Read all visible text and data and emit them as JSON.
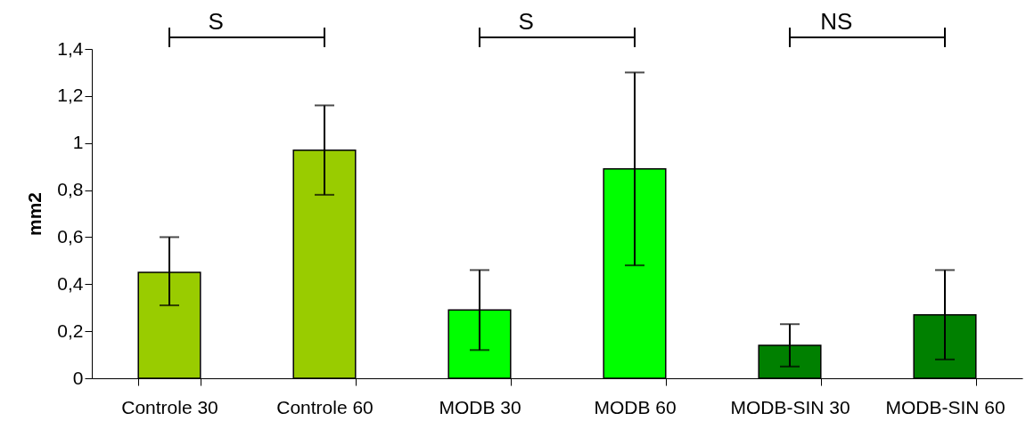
{
  "chart_data": {
    "type": "bar",
    "ylabel": "mm2",
    "categories": [
      "Controle 30",
      "Controle 60",
      "MODB 30",
      "MODB 60",
      "MODB-SIN 30",
      "MODB-SIN 60"
    ],
    "values": [
      0.45,
      0.97,
      0.29,
      0.89,
      0.14,
      0.27
    ],
    "colors": [
      "#99cc00",
      "#99cc00",
      "#00ff00",
      "#00ff00",
      "#008000",
      "#008000"
    ],
    "errors": [
      [
        0.31,
        0.6
      ],
      [
        0.78,
        1.16
      ],
      [
        0.12,
        0.46
      ],
      [
        0.48,
        1.3
      ],
      [
        0.05,
        0.23
      ],
      [
        0.08,
        0.46
      ]
    ],
    "ylim": [
      0,
      1.4
    ],
    "yticks": [
      0,
      {
        "value": 0.2,
        "label": "0,2"
      },
      {
        "value": 0.4,
        "label": "0,4"
      },
      {
        "value": 0.6,
        "label": "0,6"
      },
      {
        "value": 0.8,
        "label": "0,8"
      },
      1,
      {
        "value": 1.2,
        "label": "1,2"
      },
      {
        "value": 1.4,
        "label": "1,4"
      }
    ],
    "grid": false,
    "annotations": [
      "S",
      "S",
      "NS"
    ]
  }
}
